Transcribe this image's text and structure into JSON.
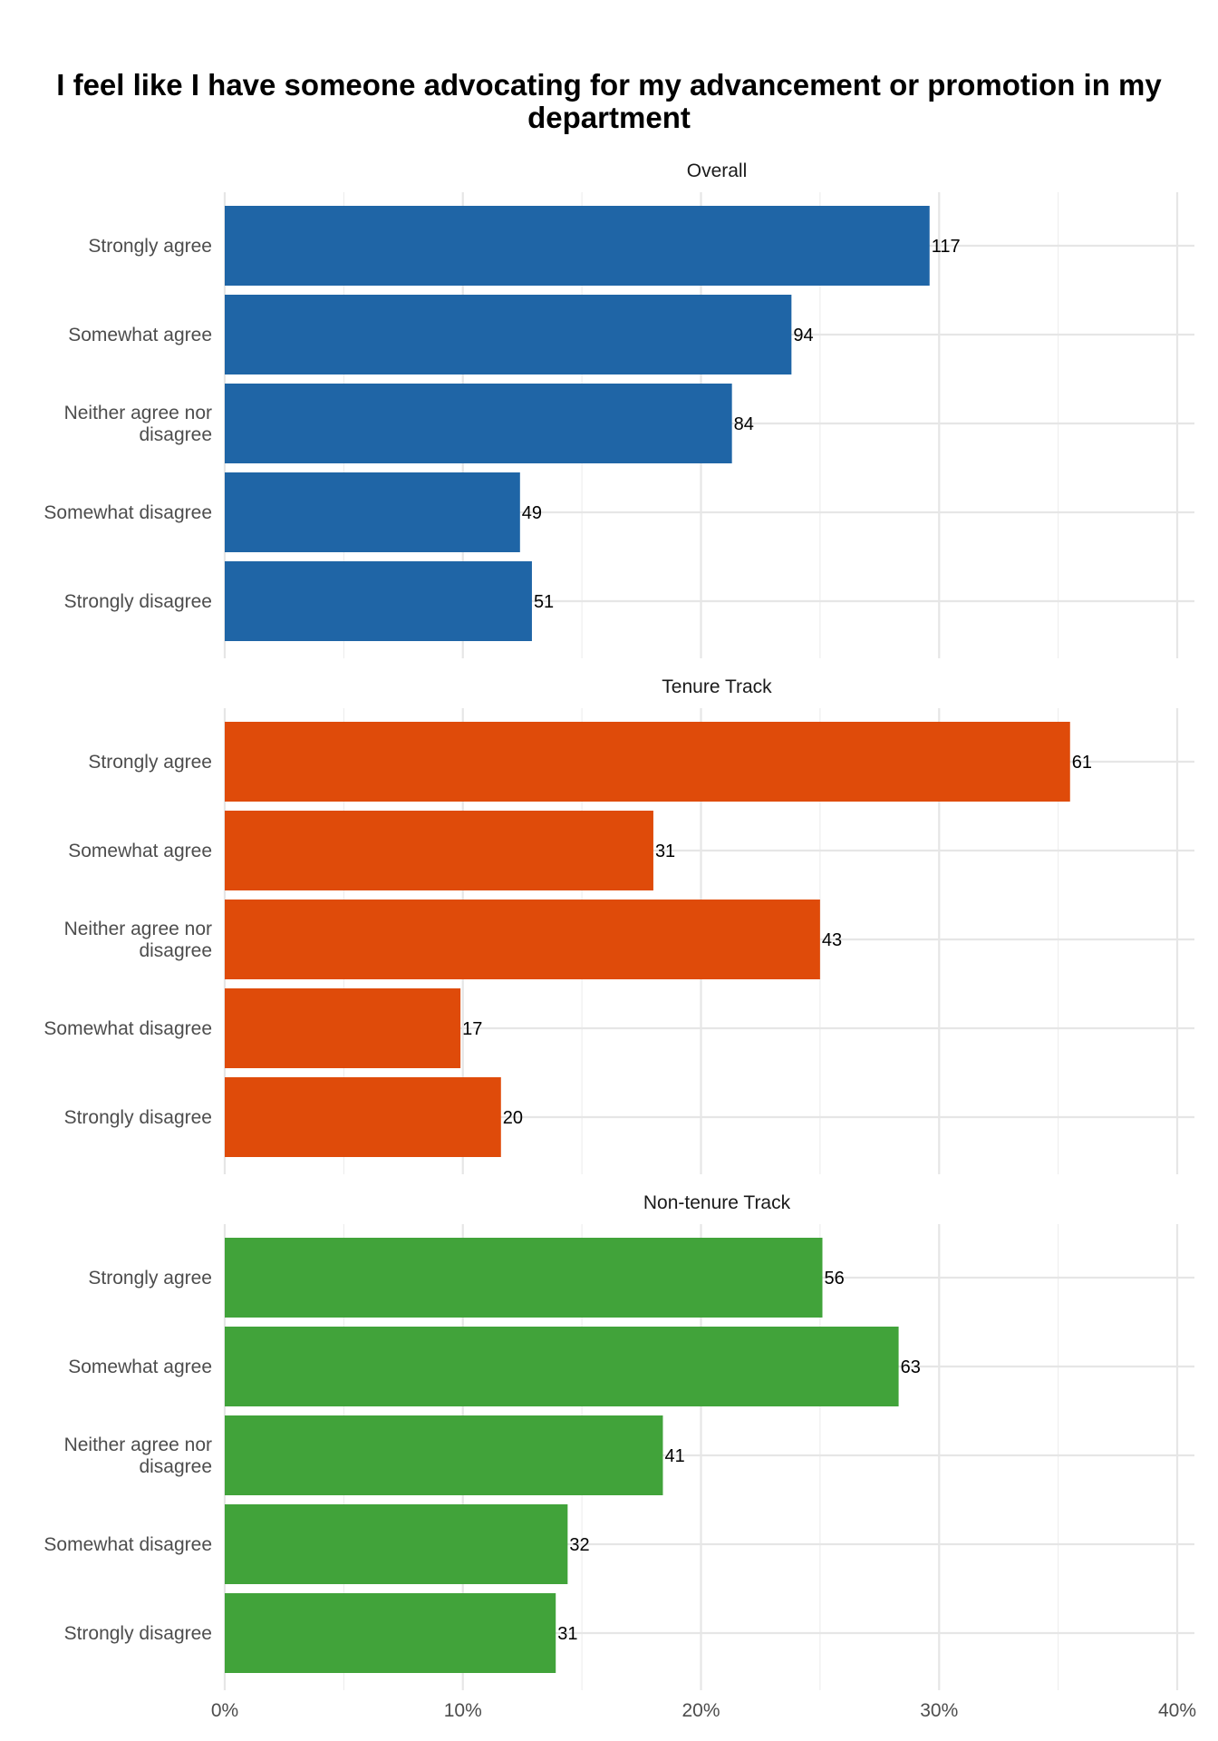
{
  "chart_data": {
    "type": "bar",
    "orientation": "horizontal",
    "title": "I feel like I have someone advocating for my advancement or promotion in my department",
    "xlabel": "",
    "ylabel": "",
    "categories": [
      "Strongly agree",
      "Somewhat agree",
      "Neither agree nor disagree",
      "Somewhat disagree",
      "Strongly disagree"
    ],
    "category_lines": [
      [
        "Strongly agree"
      ],
      [
        "Somewhat agree"
      ],
      [
        "Neither agree nor",
        "disagree"
      ],
      [
        "Somewhat disagree"
      ],
      [
        "Strongly disagree"
      ]
    ],
    "x_ticks": [
      "0%",
      "10%",
      "20%",
      "30%",
      "40%"
    ],
    "xlim": [
      0,
      0.4
    ],
    "grid": true,
    "legend": "none",
    "panels": [
      {
        "name": "Overall",
        "color": "#1f65a6",
        "percent": [
          0.296,
          0.238,
          0.213,
          0.124,
          0.129
        ],
        "counts": [
          "117",
          "94",
          "84",
          "49",
          "51"
        ]
      },
      {
        "name": "Tenure Track",
        "color": "#df4b0a",
        "percent": [
          0.355,
          0.18,
          0.25,
          0.099,
          0.116
        ],
        "counts": [
          "61",
          "31",
          "43",
          "17",
          "20"
        ]
      },
      {
        "name": "Non-tenure Track",
        "color": "#41a33a",
        "percent": [
          0.251,
          0.283,
          0.184,
          0.144,
          0.139
        ],
        "counts": [
          "56",
          "63",
          "41",
          "32",
          "31"
        ]
      }
    ]
  }
}
